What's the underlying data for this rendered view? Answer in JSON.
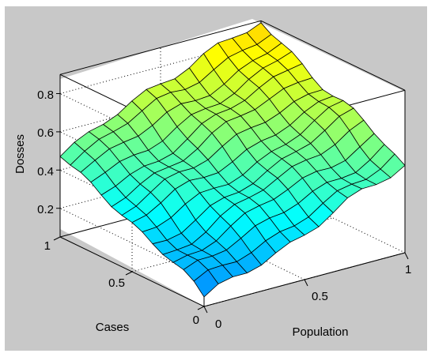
{
  "chart_data": {
    "type": "surface",
    "title": "",
    "xlabel": "Population",
    "ylabel": "Cases",
    "zlabel": "Dosses",
    "x_range": [
      0,
      1
    ],
    "y_range": [
      0,
      1
    ],
    "z_range": [
      0.2,
      0.9
    ],
    "x_ticks": [
      "0",
      "0.5",
      "1"
    ],
    "y_ticks": [
      "0",
      "0.5",
      "1"
    ],
    "z_ticks": [
      "0.2",
      "0.4",
      "0.6",
      "0.8"
    ],
    "grid": true,
    "colormap": "jet",
    "x": [
      0,
      0.071,
      0.143,
      0.214,
      0.286,
      0.357,
      0.429,
      0.5,
      0.571,
      0.643,
      0.714,
      0.786,
      0.857,
      0.929,
      1
    ],
    "y": [
      0,
      0.071,
      0.143,
      0.214,
      0.286,
      0.357,
      0.429,
      0.5,
      0.571,
      0.643,
      0.714,
      0.786,
      0.857,
      0.929,
      1
    ],
    "z_corners": {
      "x0_y0": 0.1,
      "x1_y0": 0.5,
      "x0_y1": 0.5,
      "x1_y1": 0.9
    },
    "z_model": "z ≈ 0.1 + 0.4·x + 0.4·y with small ripples"
  },
  "colors": {
    "figure_background": "#c8c8c8",
    "axes_background": "#ffffff",
    "mesh_lines": "#000000"
  }
}
